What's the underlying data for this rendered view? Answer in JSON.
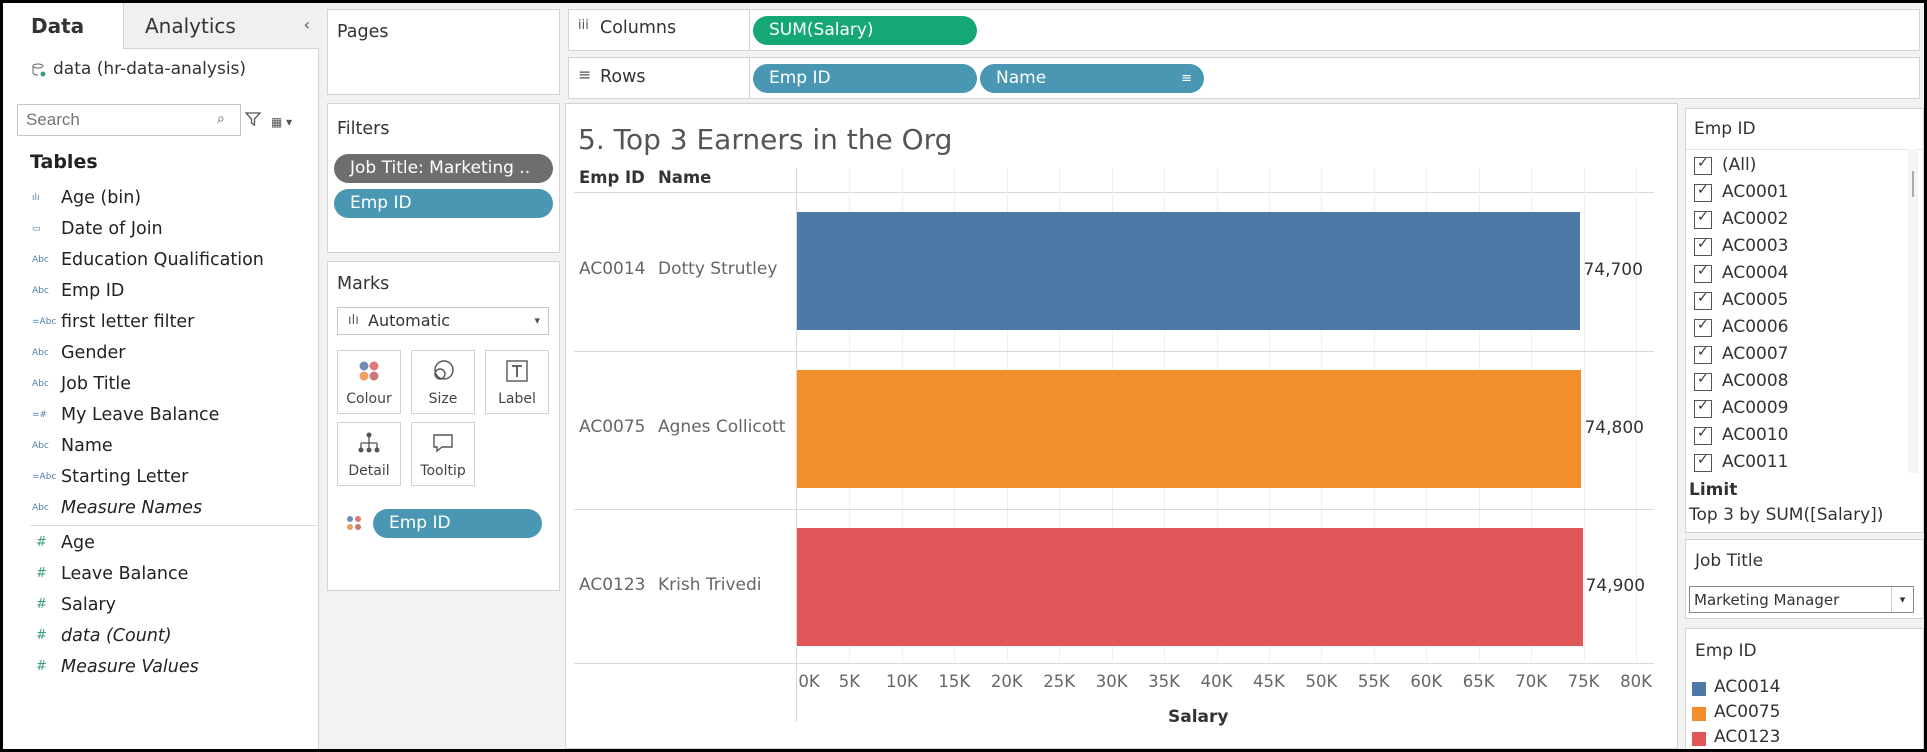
{
  "left_pane": {
    "tab_data": "Data",
    "tab_analytics": "Analytics",
    "datasource": "data (hr-data-analysis)",
    "search_placeholder": "Search",
    "tables_heading": "Tables",
    "dimensions": [
      {
        "label": "Age (bin)",
        "icon": "bin-icon",
        "italic": false
      },
      {
        "label": "Date of Join",
        "icon": "calendar-icon",
        "italic": false
      },
      {
        "label": "Education Qualification",
        "icon": "abc-icon",
        "italic": false
      },
      {
        "label": "Emp ID",
        "icon": "abc-icon",
        "italic": false
      },
      {
        "label": "first letter filter",
        "icon": "calc-abc-icon",
        "italic": false
      },
      {
        "label": "Gender",
        "icon": "abc-icon",
        "italic": false
      },
      {
        "label": "Job Title",
        "icon": "abc-icon",
        "italic": false
      },
      {
        "label": "My Leave Balance",
        "icon": "calc-number-icon",
        "italic": false
      },
      {
        "label": "Name",
        "icon": "abc-icon",
        "italic": false
      },
      {
        "label": "Starting Letter",
        "icon": "calc-abc-icon",
        "italic": false
      },
      {
        "label": "Measure Names",
        "icon": "abc-icon",
        "italic": true
      }
    ],
    "measures": [
      {
        "label": "Age",
        "italic": false
      },
      {
        "label": "Leave Balance",
        "italic": false
      },
      {
        "label": "Salary",
        "italic": false
      },
      {
        "label": "data (Count)",
        "italic": true
      },
      {
        "label": "Measure Values",
        "italic": true
      }
    ]
  },
  "shelves": {
    "pages_label": "Pages",
    "filters_label": "Filters",
    "filter_pills": [
      "Job Title: Marketing ..",
      "Emp ID"
    ],
    "marks_label": "Marks",
    "marks_type": "Automatic",
    "mark_buttons": [
      "Colour",
      "Size",
      "Label",
      "Detail",
      "Tooltip"
    ],
    "marks_pill": "Emp ID",
    "columns_label": "Columns",
    "columns_pill": "SUM(Salary)",
    "rows_label": "Rows",
    "rows_pills": [
      "Emp ID",
      "Name"
    ]
  },
  "view": {
    "title": "5. Top 3 Earners in the Org",
    "header_emp": "Emp ID",
    "header_name": "Name",
    "rows": [
      {
        "emp": "AC0014",
        "name": "Dotty Strutley",
        "label": "74,700"
      },
      {
        "emp": "AC0075",
        "name": "Agnes Collicott",
        "label": "74,800"
      },
      {
        "emp": "AC0123",
        "name": "Krish Trivedi",
        "label": "74,900"
      }
    ]
  },
  "chart_data": {
    "type": "bar",
    "orientation": "horizontal",
    "title": "5. Top 3 Earners in the Org",
    "categories": [
      "AC0014 Dotty Strutley",
      "AC0075 Agnes Collicott",
      "AC0123 Krish Trivedi"
    ],
    "values": [
      74700,
      74800,
      74900
    ],
    "colors": [
      "#4e79a7",
      "#f28e2b",
      "#e15759"
    ],
    "xlabel": "Salary",
    "ylabel": "",
    "xlim": [
      0,
      82000
    ],
    "ticks": [
      "0K",
      "5K",
      "10K",
      "15K",
      "20K",
      "25K",
      "30K",
      "35K",
      "40K",
      "45K",
      "50K",
      "55K",
      "60K",
      "65K",
      "70K",
      "75K",
      "80K"
    ],
    "tick_values": [
      0,
      5000,
      10000,
      15000,
      20000,
      25000,
      30000,
      35000,
      40000,
      45000,
      50000,
      55000,
      60000,
      65000,
      70000,
      75000,
      80000
    ],
    "grid": true
  },
  "right_pane": {
    "empid_filter_title": "Emp ID",
    "empid_items": [
      "(All)",
      "AC0001",
      "AC0002",
      "AC0003",
      "AC0004",
      "AC0005",
      "AC0006",
      "AC0007",
      "AC0008",
      "AC0009",
      "AC0010",
      "AC0011"
    ],
    "limit_label": "Limit",
    "limit_value": "Top 3 by SUM([Salary])",
    "jobtitle_title": "Job Title",
    "jobtitle_value": "Marketing Manager",
    "legend_title": "Emp ID",
    "legend": [
      {
        "label": "AC0014",
        "color": "#4e79a7"
      },
      {
        "label": "AC0075",
        "color": "#f28e2b"
      },
      {
        "label": "AC0123",
        "color": "#e15759"
      }
    ]
  }
}
